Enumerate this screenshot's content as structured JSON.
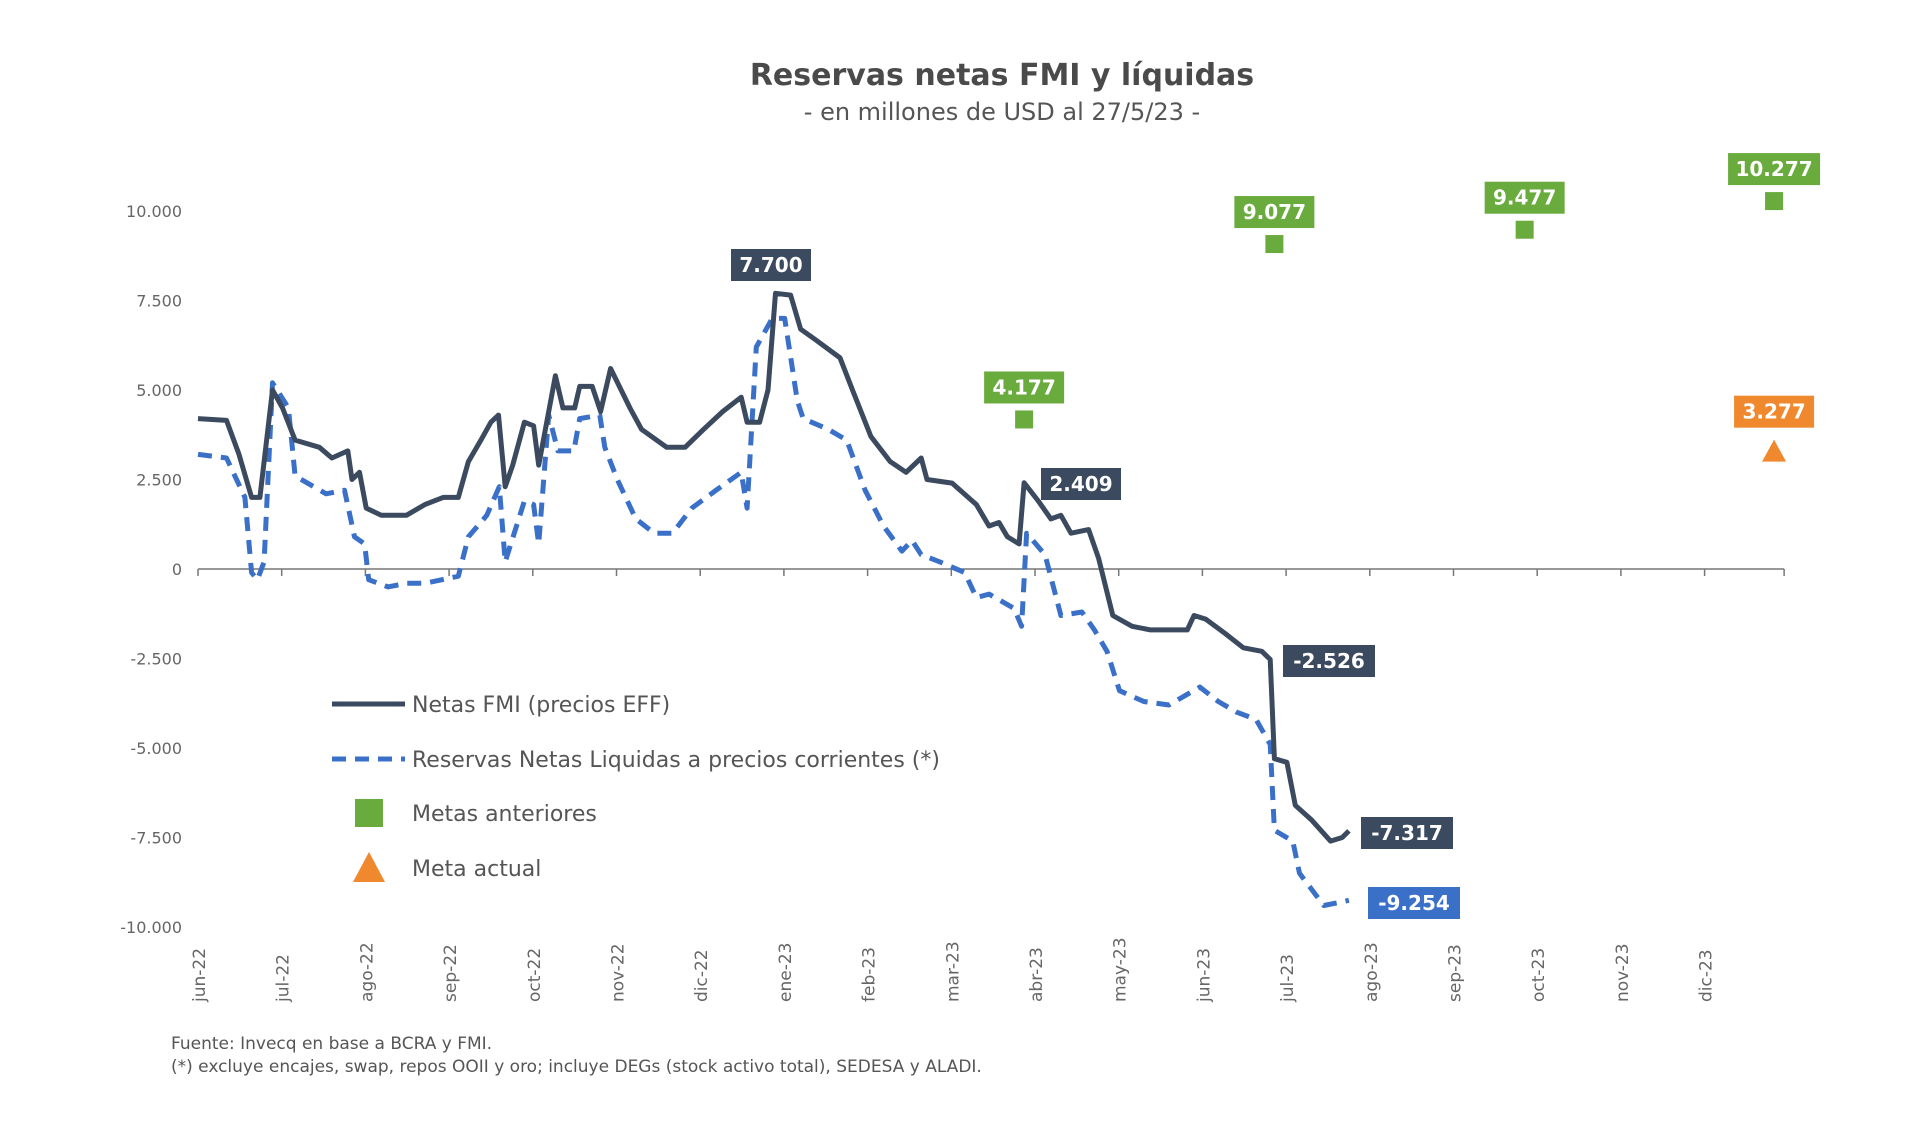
{
  "chart_data": {
    "type": "line",
    "title": "Reservas netas FMI y líquidas",
    "subtitle": "- en millones de USD al 27/5/23 -",
    "x_unit": "months since jun-22",
    "xlim": [
      0,
      18.95
    ],
    "ylim": [
      -10000,
      10000
    ],
    "y_ticks": [
      10000,
      7500,
      5000,
      2500,
      0,
      -2500,
      -5000,
      -7500,
      -10000
    ],
    "y_tick_labels": [
      "10.000",
      "7.500",
      "5.000",
      "2.500",
      "0",
      "-2.500",
      "-5.000",
      "-7.500",
      "-10.000"
    ],
    "x_tick_labels": [
      "jun-22",
      "jul-22",
      "ago-22",
      "sep-22",
      "oct-22",
      "nov-22",
      "dic-22",
      "ene-23",
      "feb-23",
      "mar-23",
      "abr-23",
      "may-23",
      "jun-23",
      "jul-23",
      "ago-23",
      "sep-23",
      "oct-23",
      "nov-23",
      "dic-23"
    ],
    "colors": {
      "fmi": "#3b4a5f",
      "liquidas": "#3a70c8",
      "metas": "#6aab3e",
      "meta_actual": "#f0892e"
    },
    "series": [
      {
        "name": "Netas FMI (precios EFF)",
        "style": "solid",
        "x": [
          0,
          0.34,
          0.49,
          0.64,
          0.74,
          0.89,
          1.01,
          1.16,
          1.45,
          1.6,
          1.79,
          1.84,
          1.93,
          2.01,
          2.19,
          2.49,
          2.71,
          2.93,
          3.11,
          3.23,
          3.38,
          3.5,
          3.59,
          3.67,
          3.76,
          3.9,
          4.01,
          4.07,
          4.27,
          4.36,
          4.5,
          4.56,
          4.71,
          4.81,
          4.93,
          5.16,
          5.3,
          5.6,
          5.82,
          6.04,
          6.27,
          6.49,
          6.56,
          6.71,
          6.81,
          6.9,
          7.08,
          7.2,
          7.38,
          7.67,
          7.82,
          8.04,
          8.27,
          8.46,
          8.64,
          8.71,
          9.01,
          9.3,
          9.45,
          9.57,
          9.67,
          9.81,
          9.87,
          10.04,
          10.19,
          10.31,
          10.43,
          10.64,
          10.76,
          10.93,
          11.16,
          11.38,
          11.82,
          11.9,
          12.04,
          12.27,
          12.49,
          12.71,
          12.81,
          12.86,
          13.01,
          13.11,
          13.3,
          13.53,
          13.67,
          13.75
        ],
        "y": [
          4200,
          4150,
          3200,
          2000,
          2000,
          5000,
          4500,
          3600,
          3400,
          3100,
          3300,
          2500,
          2700,
          1700,
          1500,
          1500,
          1800,
          2000,
          2000,
          3000,
          3600,
          4100,
          4300,
          2300,
          2900,
          4100,
          4000,
          2900,
          5400,
          4500,
          4500,
          5100,
          5100,
          4400,
          5600,
          4500,
          3900,
          3400,
          3400,
          3900,
          4400,
          4800,
          4100,
          4100,
          5000,
          7700,
          7650,
          6700,
          6400,
          5900,
          5000,
          3700,
          3000,
          2700,
          3100,
          2500,
          2400,
          1800,
          1200,
          1300,
          900,
          700,
          2409,
          1900,
          1400,
          1500,
          1000,
          1100,
          300,
          -1300,
          -1600,
          -1700,
          -1700,
          -1300,
          -1400,
          -1800,
          -2200,
          -2300,
          -2526,
          -5300,
          -5400,
          -6600,
          -7000,
          -7600,
          -7500,
          -7317
        ]
      },
      {
        "name": "Reservas Netas Liquidas a precios corrientes (*)",
        "style": "dashed",
        "x": [
          0,
          0.34,
          0.56,
          0.64,
          0.71,
          0.79,
          0.89,
          1.08,
          1.16,
          1.53,
          1.75,
          1.87,
          1.99,
          2.04,
          2.27,
          2.49,
          2.71,
          3.11,
          3.23,
          3.45,
          3.6,
          3.67,
          3.9,
          4.01,
          4.07,
          4.19,
          4.3,
          4.49,
          4.56,
          4.8,
          4.86,
          5.01,
          5.23,
          5.45,
          5.67,
          5.9,
          6.19,
          6.49,
          6.56,
          6.67,
          6.86,
          7.01,
          7.16,
          7.23,
          7.53,
          7.75,
          7.97,
          8.19,
          8.41,
          8.53,
          8.64,
          8.86,
          9.16,
          9.3,
          9.45,
          9.75,
          9.84,
          9.9,
          10.12,
          10.31,
          10.56,
          10.71,
          10.86,
          11.01,
          11.3,
          11.6,
          11.82,
          11.97,
          12.19,
          12.41,
          12.64,
          12.81,
          12.86,
          13.08,
          13.16,
          13.45,
          13.67,
          13.75
        ],
        "y": [
          3200,
          3100,
          2000,
          -100,
          -300,
          200,
          5200,
          4500,
          2600,
          2100,
          2200,
          900,
          700,
          -300,
          -500,
          -400,
          -400,
          -200,
          900,
          1500,
          2300,
          200,
          1900,
          1800,
          700,
          4300,
          3300,
          3300,
          4200,
          4300,
          3400,
          2500,
          1400,
          1000,
          1000,
          1700,
          2200,
          2700,
          1700,
          6200,
          7000,
          7000,
          4700,
          4200,
          3900,
          3600,
          2200,
          1200,
          500,
          800,
          400,
          200,
          -100,
          -800,
          -700,
          -1100,
          -1600,
          1000,
          400,
          -1300,
          -1200,
          -1700,
          -2300,
          -3400,
          -3700,
          -3800,
          -3500,
          -3300,
          -3700,
          -4000,
          -4200,
          -4900,
          -7300,
          -7600,
          -8500,
          -9400,
          -9300,
          -9254
        ]
      },
      {
        "name": "Metas anteriores",
        "style": "square-marker",
        "x": [
          9.87,
          12.86,
          15.85,
          18.83
        ],
        "y": [
          4177,
          9077,
          9477,
          10277
        ]
      },
      {
        "name": "Meta actual",
        "style": "triangle-marker",
        "x": [
          18.83
        ],
        "y": [
          3277
        ]
      }
    ],
    "annotations": {
      "peak": "7.700",
      "abr_spike": "2.409",
      "pre_drop": "-2.526",
      "fmi_last": "-7.317",
      "liquidas_last": "-9.254",
      "metas": [
        "4.177",
        "9.077",
        "9.477",
        "10.277"
      ],
      "meta_actual": "3.277"
    },
    "legend": [
      "Netas FMI (precios EFF)",
      "Reservas Netas Liquidas a precios corrientes (*)",
      "Metas anteriores",
      "Meta actual"
    ],
    "legend_placement": "lower-left",
    "grid": false
  },
  "footnotes": {
    "source": "Fuente: Invecq en base a BCRA y FMI.",
    "note": "(*) excluye encajes, swap, repos OOII y oro; incluye DEGs (stock activo total), SEDESA y ALADI."
  }
}
